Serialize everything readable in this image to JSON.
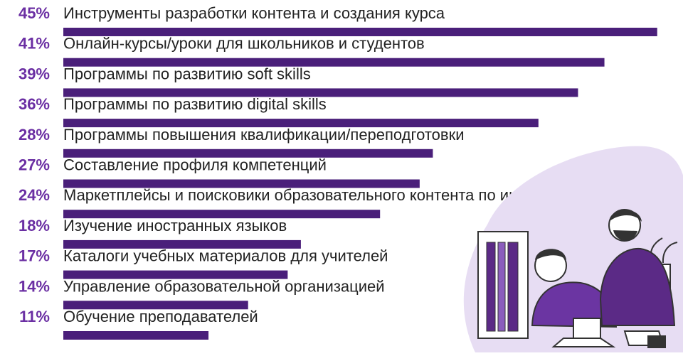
{
  "colors": {
    "bar": "#4a1f7a",
    "percent": "#6b2fa3",
    "text": "#222222",
    "blob": "#e7ddf3"
  },
  "chart_data": {
    "type": "bar",
    "orientation": "horizontal",
    "title": "",
    "xlabel": "",
    "ylabel": "",
    "xlim": [
      0,
      100
    ],
    "grid": false,
    "legend": "none",
    "categories": [
      "Инструменты разработки контента и создания курса",
      "Онлайн-курсы/уроки для школьников и студентов",
      "Программы по развитию soft skills",
      "Программы по развитию digital skills",
      "Программы повышения квалификации/переподготовки",
      "Составление профиля компетенций",
      "Маркетплейсы и поисковики образовательного контента по интересам",
      "Изучение иностранных языков",
      "Каталоги учебных материалов для учителей",
      "Управление образовательной организацией",
      "Обучение преподавателей"
    ],
    "values": [
      45,
      41,
      39,
      36,
      28,
      27,
      24,
      18,
      17,
      14,
      11
    ],
    "value_labels": [
      "45%",
      "41%",
      "39%",
      "36%",
      "28%",
      "27%",
      "24%",
      "18%",
      "17%",
      "14%",
      "11%"
    ]
  },
  "illustration": {
    "icon": "teacher-student-laptop-illustration"
  }
}
